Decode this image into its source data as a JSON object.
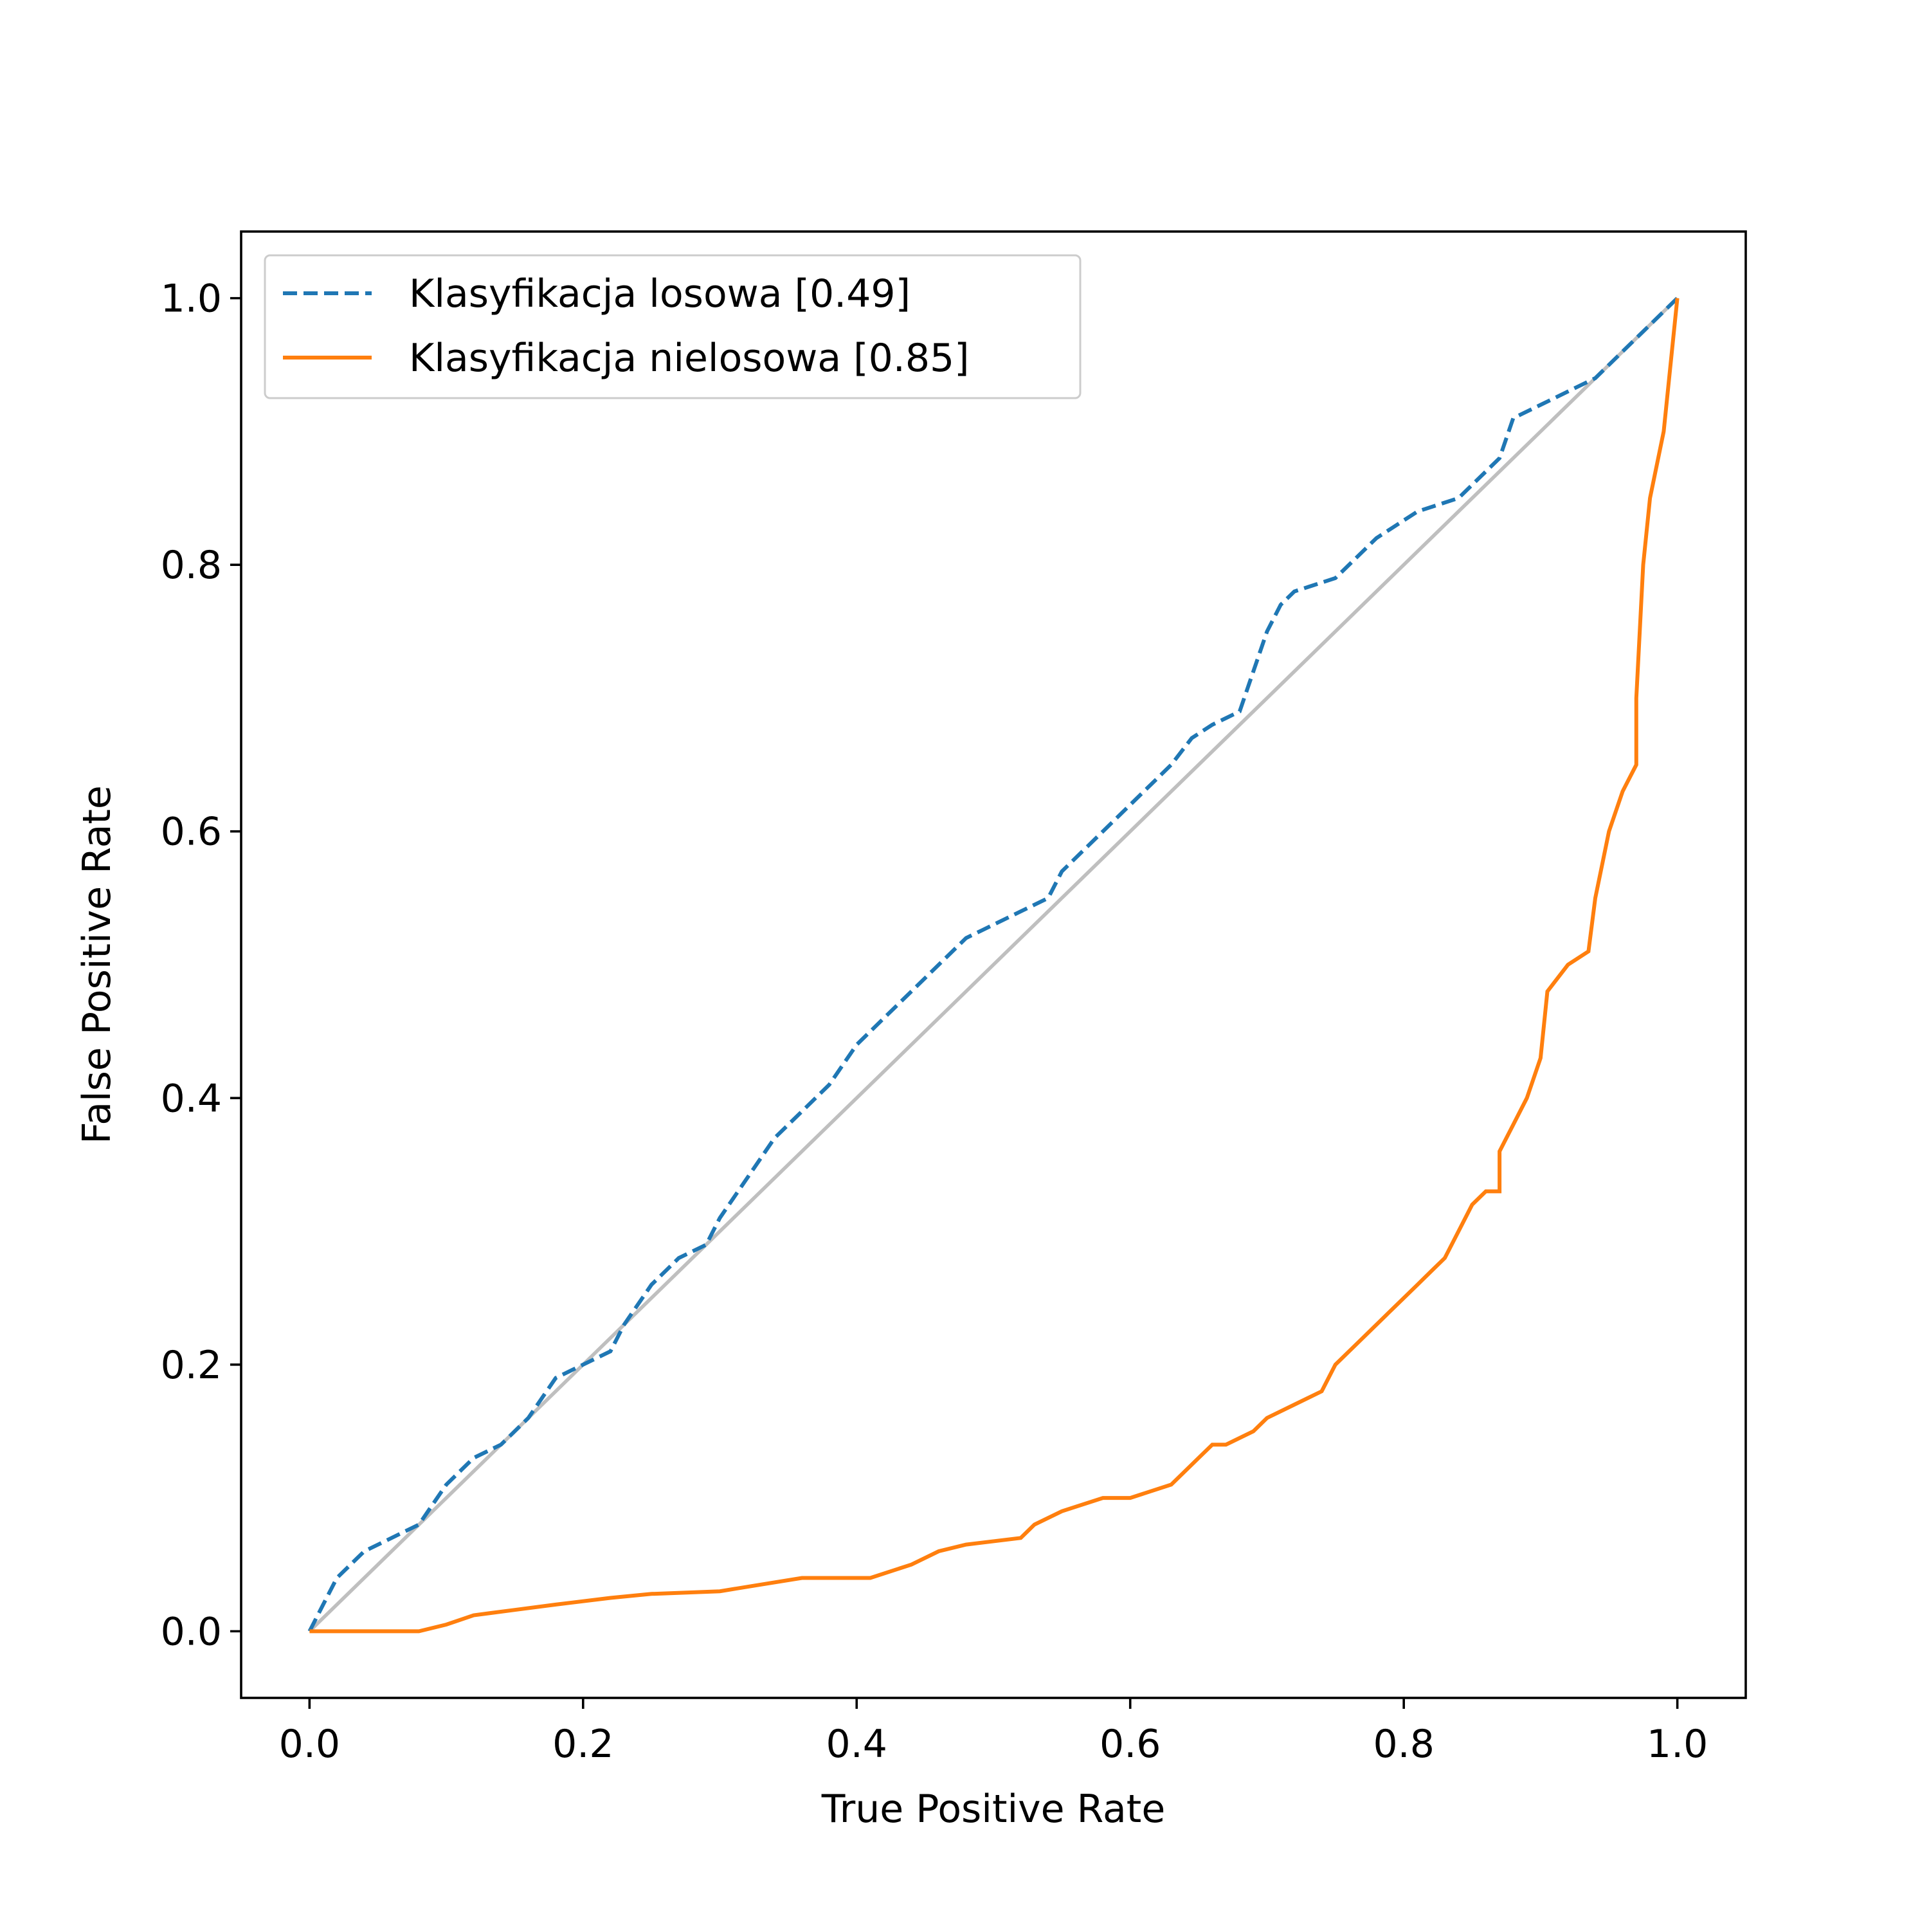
{
  "chart_data": {
    "type": "line",
    "title": "",
    "xlabel": "True Positive Rate",
    "ylabel": "False Positive Rate",
    "xlim": [
      -0.05,
      1.05
    ],
    "ylim": [
      -0.05,
      1.05
    ],
    "xticks": [
      "0.0",
      "0.2",
      "0.4",
      "0.6",
      "0.8",
      "1.0"
    ],
    "yticks": [
      "0.0",
      "0.2",
      "0.4",
      "0.6",
      "0.8",
      "1.0"
    ],
    "grid": false,
    "legend_position": "top-left",
    "reference_line": {
      "x": [
        0,
        1
      ],
      "y": [
        0,
        1
      ],
      "color": "#bfbfbf"
    },
    "series": [
      {
        "name": "Klasyfikacja losowa [0.49]",
        "color": "#1f77b4",
        "style": "dashed",
        "x": [
          0.0,
          0.01,
          0.02,
          0.04,
          0.06,
          0.08,
          0.1,
          0.12,
          0.14,
          0.16,
          0.18,
          0.2,
          0.22,
          0.23,
          0.25,
          0.27,
          0.29,
          0.3,
          0.32,
          0.34,
          0.36,
          0.38,
          0.4,
          0.42,
          0.44,
          0.46,
          0.48,
          0.5,
          0.52,
          0.54,
          0.55,
          0.57,
          0.59,
          0.61,
          0.63,
          0.645,
          0.66,
          0.68,
          0.69,
          0.7,
          0.71,
          0.72,
          0.75,
          0.78,
          0.81,
          0.84,
          0.86,
          0.87,
          0.88,
          0.9,
          0.92,
          0.94,
          0.96,
          0.98,
          1.0
        ],
        "y": [
          0.0,
          0.02,
          0.04,
          0.06,
          0.07,
          0.08,
          0.11,
          0.13,
          0.14,
          0.16,
          0.19,
          0.2,
          0.21,
          0.23,
          0.26,
          0.28,
          0.29,
          0.31,
          0.34,
          0.37,
          0.39,
          0.41,
          0.44,
          0.46,
          0.48,
          0.5,
          0.52,
          0.53,
          0.54,
          0.55,
          0.57,
          0.59,
          0.61,
          0.63,
          0.65,
          0.67,
          0.68,
          0.69,
          0.72,
          0.75,
          0.77,
          0.78,
          0.79,
          0.82,
          0.84,
          0.85,
          0.87,
          0.88,
          0.91,
          0.92,
          0.93,
          0.94,
          0.96,
          0.98,
          1.0
        ]
      },
      {
        "name": "Klasyfikacja nielosowa [0.85]",
        "color": "#ff7f0e",
        "style": "solid",
        "x": [
          0.0,
          0.08,
          0.1,
          0.12,
          0.15,
          0.18,
          0.22,
          0.25,
          0.3,
          0.33,
          0.36,
          0.41,
          0.44,
          0.46,
          0.48,
          0.52,
          0.53,
          0.55,
          0.58,
          0.6,
          0.63,
          0.65,
          0.66,
          0.67,
          0.69,
          0.7,
          0.72,
          0.74,
          0.75,
          0.77,
          0.79,
          0.81,
          0.82,
          0.83,
          0.84,
          0.85,
          0.86,
          0.87,
          0.87,
          0.88,
          0.89,
          0.9,
          0.905,
          0.92,
          0.935,
          0.94,
          0.95,
          0.96,
          0.97,
          0.97,
          0.975,
          0.98,
          0.99,
          0.995,
          1.0
        ],
        "y": [
          0.0,
          0.0,
          0.005,
          0.012,
          0.016,
          0.02,
          0.025,
          0.028,
          0.03,
          0.035,
          0.04,
          0.04,
          0.05,
          0.06,
          0.065,
          0.07,
          0.08,
          0.09,
          0.1,
          0.1,
          0.11,
          0.13,
          0.14,
          0.14,
          0.15,
          0.16,
          0.17,
          0.18,
          0.2,
          0.22,
          0.24,
          0.26,
          0.27,
          0.28,
          0.3,
          0.32,
          0.33,
          0.33,
          0.36,
          0.38,
          0.4,
          0.43,
          0.48,
          0.5,
          0.51,
          0.55,
          0.6,
          0.63,
          0.65,
          0.7,
          0.8,
          0.85,
          0.9,
          0.95,
          1.0
        ]
      }
    ]
  }
}
